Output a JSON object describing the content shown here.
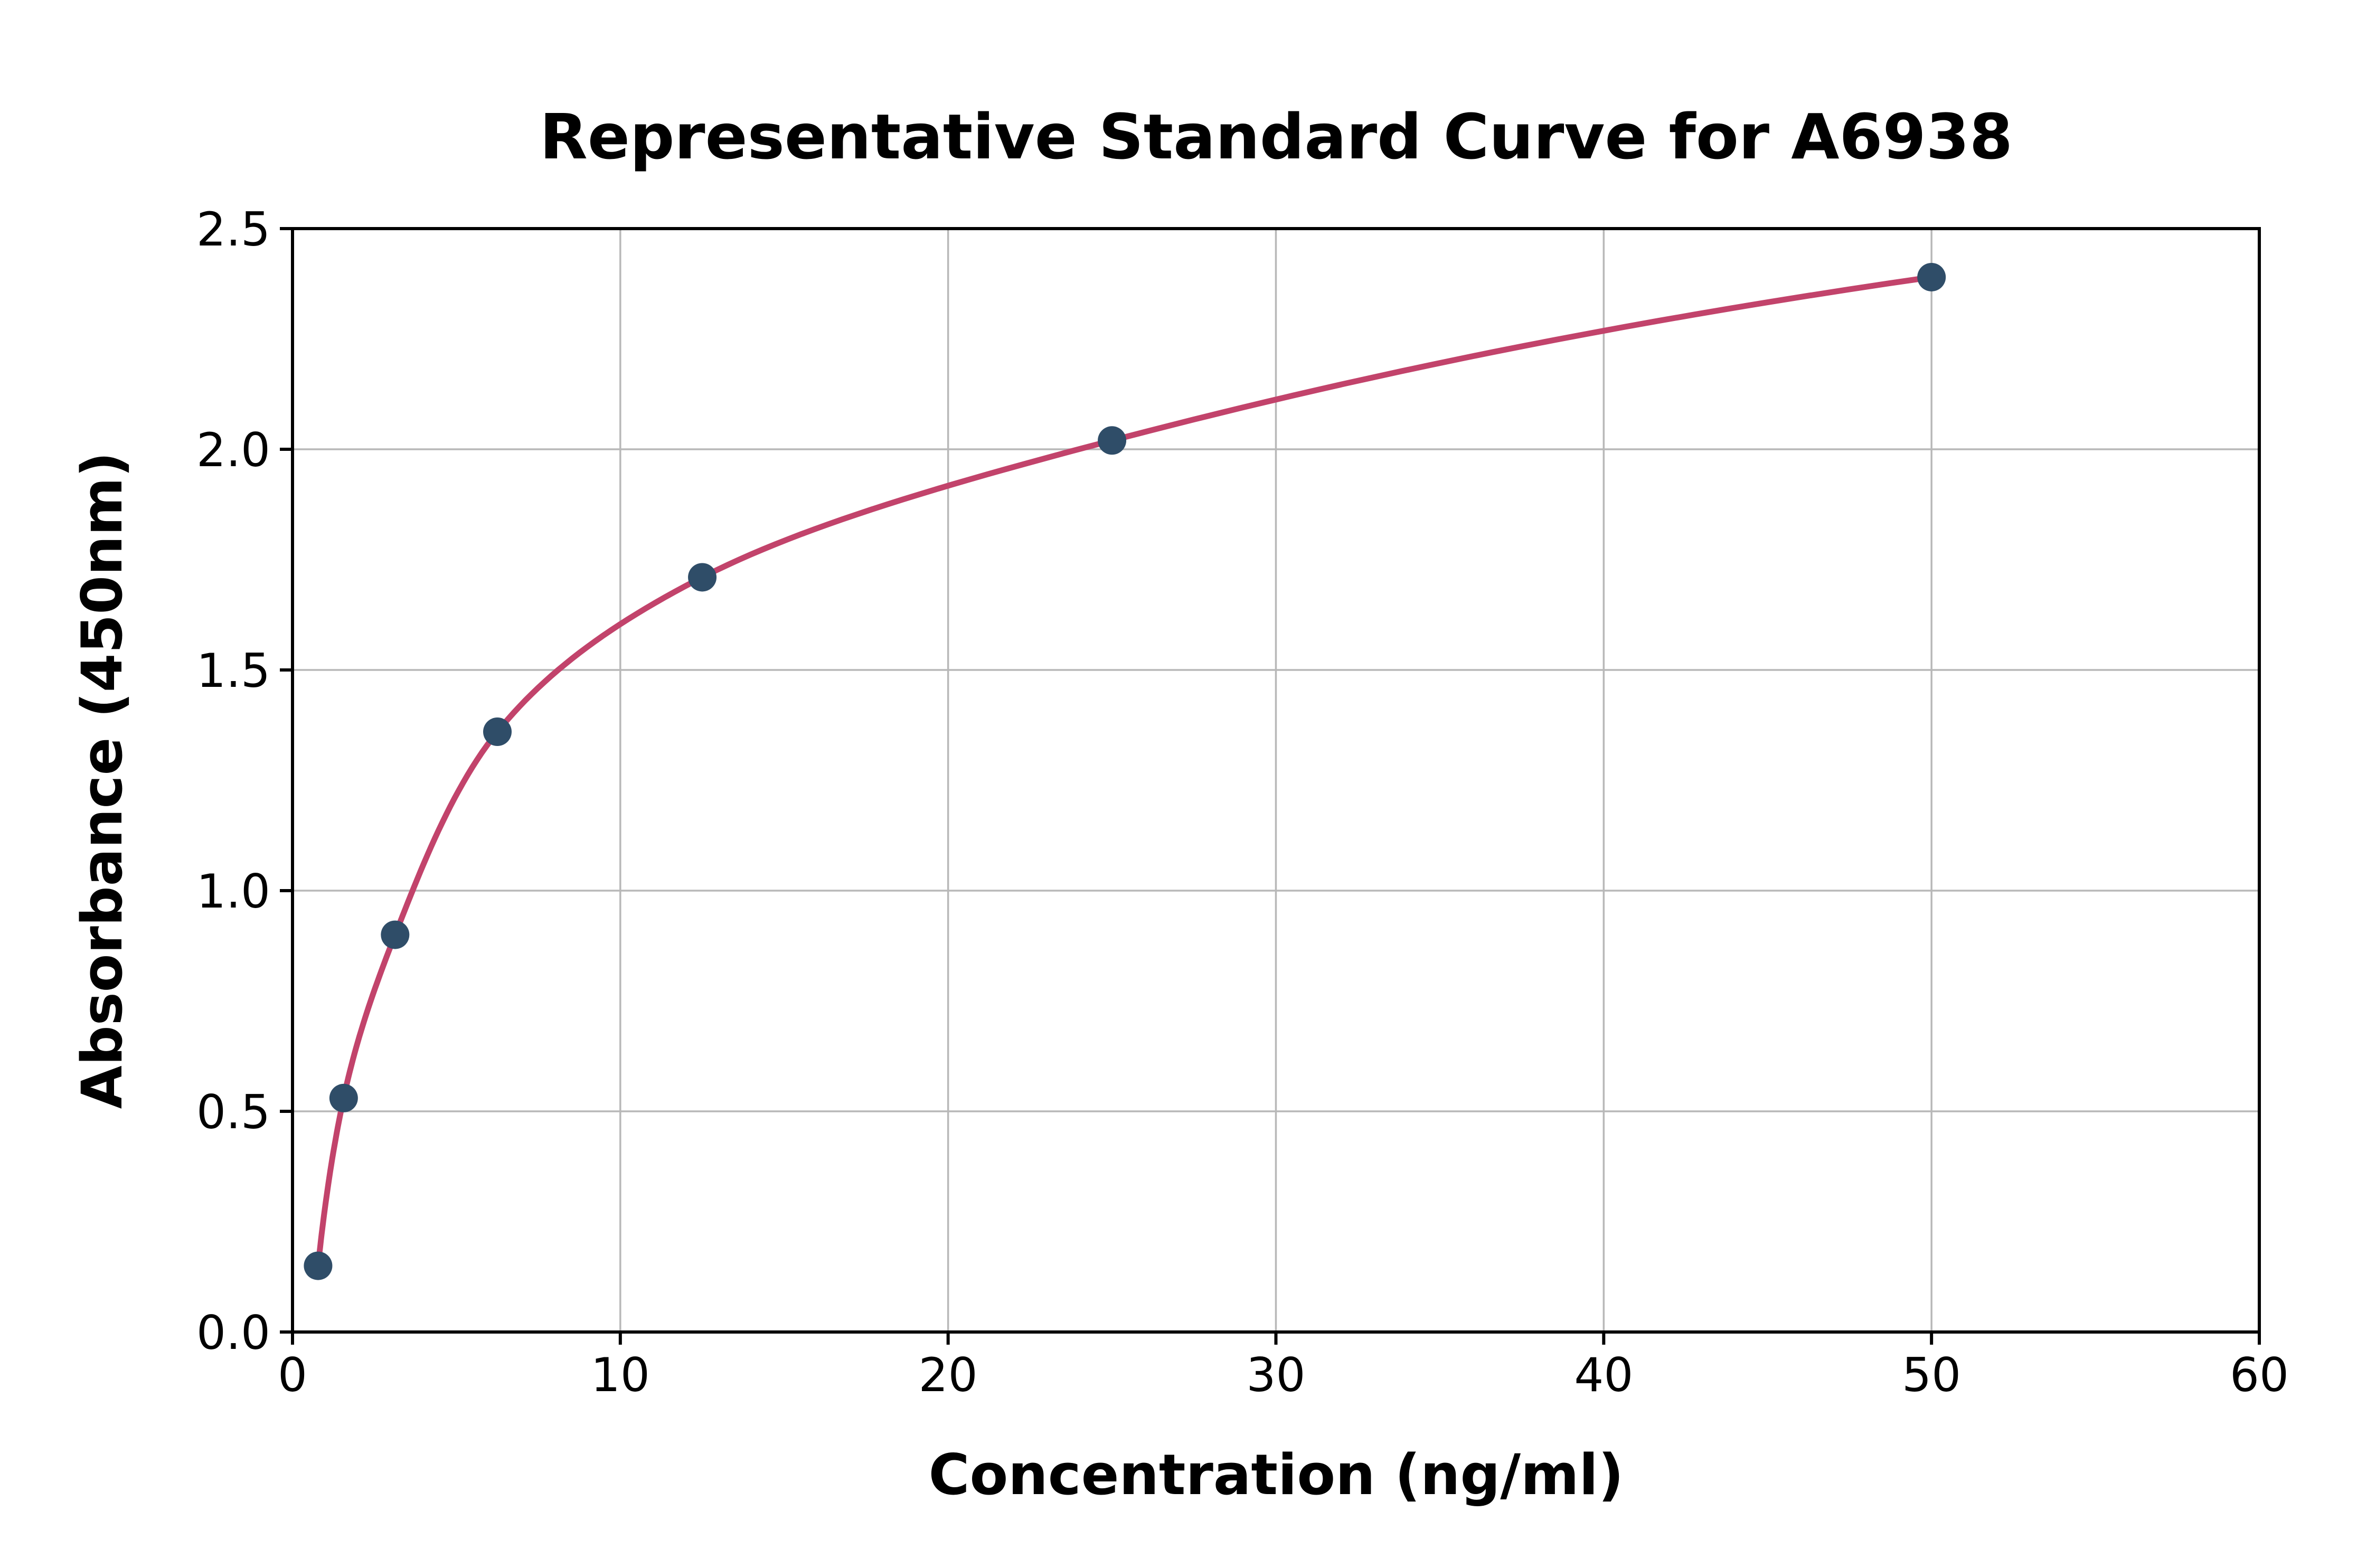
{
  "chart_data": {
    "type": "scatter",
    "title": "Representative Standard Curve for A6938",
    "xlabel": "Concentration (ng/ml)",
    "ylabel": "Absorbance (450nm)",
    "xlim": [
      0,
      60
    ],
    "ylim": [
      0,
      2.5
    ],
    "xticks": [
      0,
      10,
      20,
      30,
      40,
      50,
      60
    ],
    "xtick_labels": [
      "0",
      "10",
      "20",
      "30",
      "40",
      "50",
      "60"
    ],
    "yticks": [
      0.0,
      0.5,
      1.0,
      1.5,
      2.0,
      2.5
    ],
    "ytick_labels": [
      "0.0",
      "0.5",
      "1.0",
      "1.5",
      "2.0",
      "2.5"
    ],
    "grid": true,
    "legend": "none",
    "points": [
      {
        "x": 0.78,
        "y": 0.15
      },
      {
        "x": 1.56,
        "y": 0.53
      },
      {
        "x": 3.13,
        "y": 0.9
      },
      {
        "x": 6.25,
        "y": 1.36
      },
      {
        "x": 12.5,
        "y": 1.71
      },
      {
        "x": 25.0,
        "y": 2.02
      },
      {
        "x": 50.0,
        "y": 2.39
      }
    ],
    "curve_color": "#c2436b",
    "point_color": "#2f4d68",
    "grid_color": "#b8b8b8",
    "axis_color": "#000000",
    "background_color": "#ffffff"
  }
}
